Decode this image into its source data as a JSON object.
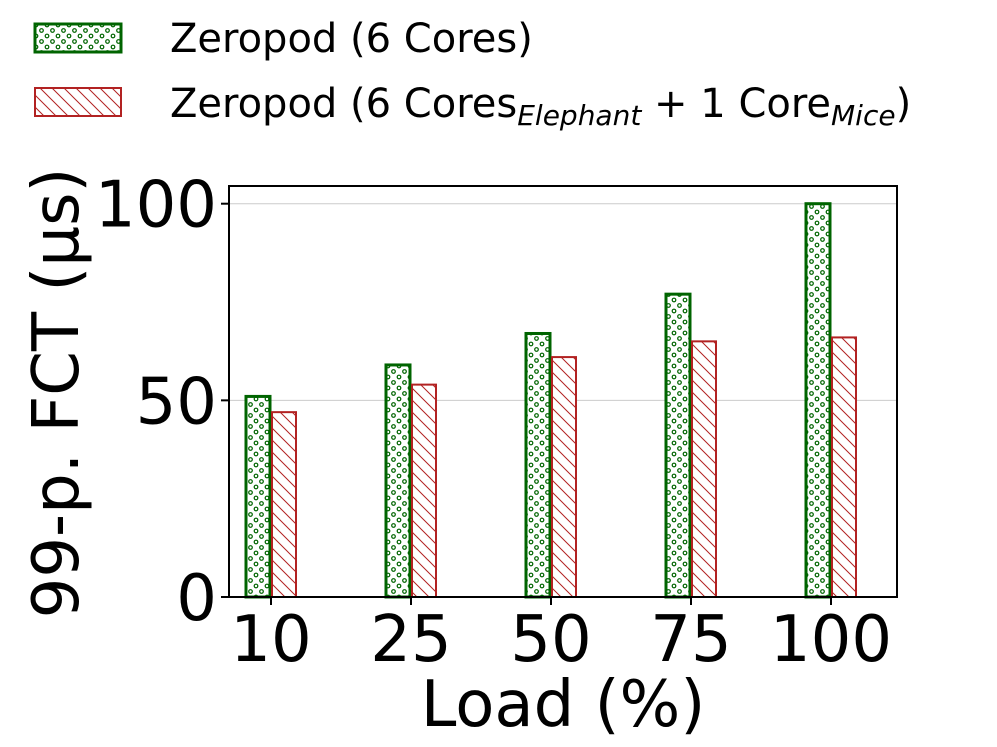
{
  "chart_data": {
    "type": "bar",
    "categories": [
      "10",
      "25",
      "50",
      "75",
      "100"
    ],
    "series": [
      {
        "name": "Zeropod (6 Cores)",
        "values": [
          51,
          59,
          67,
          77,
          100
        ],
        "color": "#006400",
        "pattern": "dots"
      },
      {
        "name": "Zeropod (6 Cores",
        "name_sub1": "Elephant",
        "name_mid": " + 1 Core",
        "name_sub2": "Mice",
        "name_end": ")",
        "values": [
          47,
          54,
          61,
          65,
          66
        ],
        "color": "#b22222",
        "pattern": "hatch"
      }
    ],
    "title": "",
    "xlabel": "Load (%)",
    "ylabel": "99-p. FCT (μs)",
    "ylim": [
      0,
      104.5
    ],
    "yticks": [
      0,
      50,
      100
    ],
    "grid": "horizontal",
    "legend_position": "top-left, above plot"
  }
}
